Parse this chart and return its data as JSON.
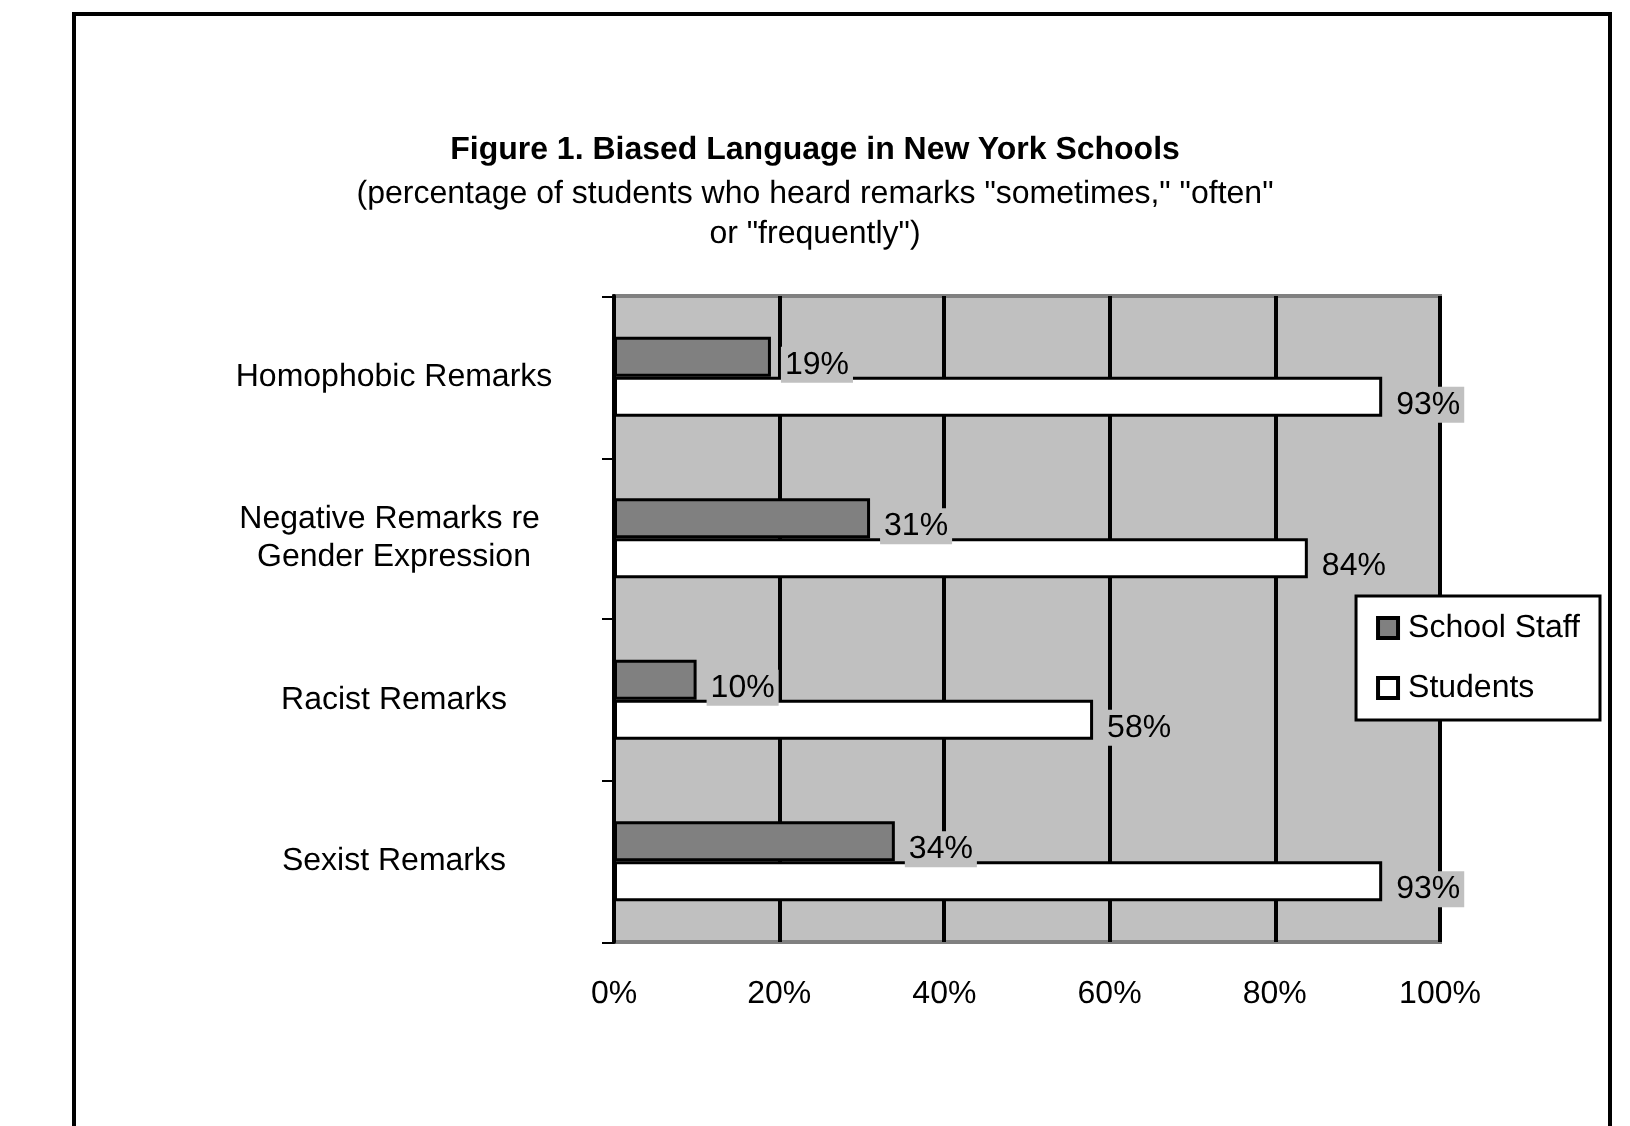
{
  "chart_data": {
    "type": "bar",
    "orientation": "horizontal",
    "title": "Figure 1. Biased Language in New York Schools",
    "subtitle": "(percentage of students who heard remarks \"sometimes,\" \"often\" or \"frequently\")",
    "categories": [
      "Homophobic Remarks",
      "Negative Remarks re Gender Expression",
      "Racist Remarks",
      "Sexist Remarks"
    ],
    "series": [
      {
        "name": "School Staff",
        "color": "#808080",
        "values": [
          19,
          31,
          10,
          34
        ],
        "value_labels": [
          "19%",
          "31%",
          "10%",
          "34%"
        ]
      },
      {
        "name": "Students",
        "color": "#ffffff",
        "values": [
          93,
          84,
          58,
          93
        ],
        "value_labels": [
          "93%",
          "84%",
          "58%",
          "93%"
        ]
      }
    ],
    "xlim": [
      0,
      100
    ],
    "xticks": [
      {
        "value": 0,
        "label": "0%"
      },
      {
        "value": 20,
        "label": "20%"
      },
      {
        "value": 40,
        "label": "40%"
      },
      {
        "value": 60,
        "label": "60%"
      },
      {
        "value": 80,
        "label": "80%"
      },
      {
        "value": 100,
        "label": "100%"
      }
    ],
    "grid": "x",
    "legend": "right"
  }
}
